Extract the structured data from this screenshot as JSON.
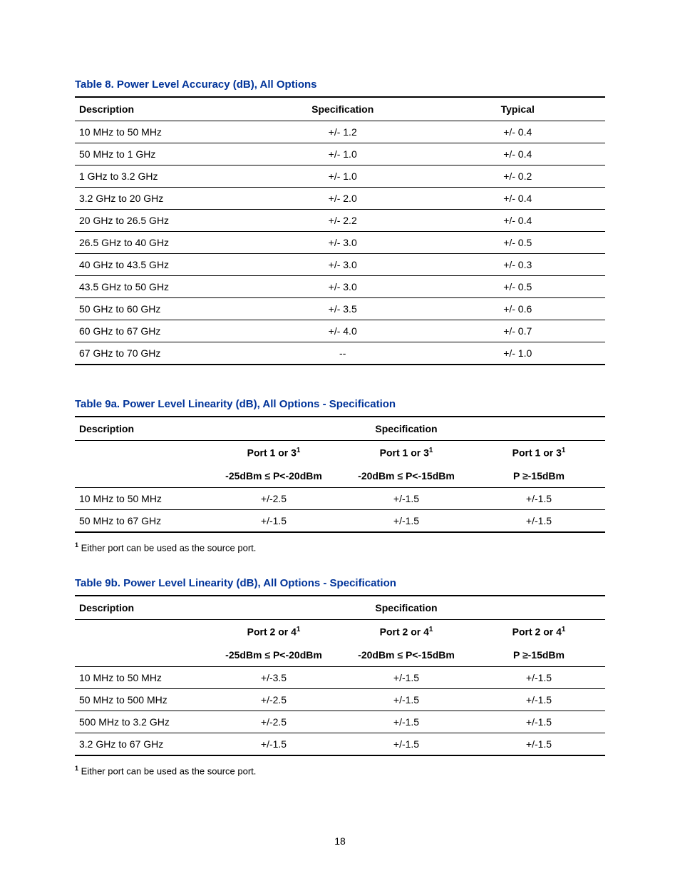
{
  "table8": {
    "title": "Table 8. Power Level Accuracy (dB), All Options",
    "headers": {
      "desc": "Description",
      "spec": "Specification",
      "typ": "Typical"
    },
    "rows": [
      {
        "desc": "10 MHz to 50 MHz",
        "spec": "+/- 1.2",
        "typ": "+/- 0.4"
      },
      {
        "desc": "50 MHz to 1 GHz",
        "spec": "+/- 1.0",
        "typ": "+/- 0.4"
      },
      {
        "desc": "1 GHz to 3.2 GHz",
        "spec": "+/- 1.0",
        "typ": "+/- 0.2"
      },
      {
        "desc": "3.2 GHz to 20 GHz",
        "spec": "+/- 2.0",
        "typ": "+/- 0.4"
      },
      {
        "desc": "20 GHz to 26.5 GHz",
        "spec": "+/- 2.2",
        "typ": "+/- 0.4"
      },
      {
        "desc": "26.5 GHz to 40 GHz",
        "spec": "+/- 3.0",
        "typ": "+/- 0.5"
      },
      {
        "desc": "40 GHz to 43.5 GHz",
        "spec": "+/- 3.0",
        "typ": "+/- 0.3"
      },
      {
        "desc": "43.5 GHz to 50 GHz",
        "spec": "+/- 3.0",
        "typ": "+/- 0.5"
      },
      {
        "desc": "50 GHz to 60 GHz",
        "spec": "+/- 3.5",
        "typ": "+/- 0.6"
      },
      {
        "desc": "60 GHz to 67 GHz",
        "spec": "+/- 4.0",
        "typ": "+/- 0.7"
      },
      {
        "desc": "67 GHz to 70 GHz",
        "spec": "--",
        "typ": "+/- 1.0"
      }
    ]
  },
  "table9a": {
    "title": "Table 9a. Power Level Linearity (dB), All Options - Specification",
    "headers": {
      "desc": "Description",
      "spec": "Specification"
    },
    "sub": {
      "c1_port": "Port 1 or 3",
      "c1_range": "-25dBm ≤ P<-20dBm",
      "c2_port": "Port 1 or 3",
      "c2_range": "-20dBm ≤ P<-15dBm",
      "c3_port": "Port 1 or 3",
      "c3_range": "P ≥-15dBm"
    },
    "rows": [
      {
        "desc": "10 MHz to 50 MHz",
        "c1": "+/-2.5",
        "c2": "+/-1.5",
        "c3": "+/-1.5"
      },
      {
        "desc": "50 MHz to 67 GHz",
        "c1": "+/-1.5",
        "c2": "+/-1.5",
        "c3": "+/-1.5"
      }
    ],
    "footnote": " Either port can be used as the source port."
  },
  "table9b": {
    "title": "Table 9b. Power Level Linearity (dB), All Options - Specification",
    "headers": {
      "desc": "Description",
      "spec": "Specification"
    },
    "sub": {
      "c1_port": "Port 2 or 4",
      "c1_range": "-25dBm ≤ P<-20dBm",
      "c2_port": "Port 2 or 4",
      "c2_range": "-20dBm ≤ P<-15dBm",
      "c3_port": "Port 2 or 4",
      "c3_range": "P ≥-15dBm"
    },
    "rows": [
      {
        "desc": "10 MHz to 50 MHz",
        "c1": "+/-3.5",
        "c2": "+/-1.5",
        "c3": "+/-1.5"
      },
      {
        "desc": "50 MHz to 500 MHz",
        "c1": "+/-2.5",
        "c2": "+/-1.5",
        "c3": "+/-1.5"
      },
      {
        "desc": "500 MHz to 3.2 GHz",
        "c1": "+/-2.5",
        "c2": "+/-1.5",
        "c3": "+/-1.5"
      },
      {
        "desc": "3.2 GHz to 67 GHz",
        "c1": "+/-1.5",
        "c2": "+/-1.5",
        "c3": "+/-1.5"
      }
    ],
    "footnote": " Either port can be used as the source port."
  },
  "page": "18"
}
